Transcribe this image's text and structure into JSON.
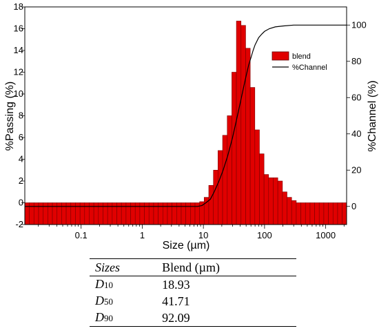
{
  "chart_data": {
    "type": "bar",
    "xlabel": "Size (µm)",
    "ylabel": "%Passing (%)",
    "y2label": "%Channel (%)",
    "x_scale": "log",
    "xlim": [
      0.012,
      2200
    ],
    "ylim": [
      -2,
      18
    ],
    "y2lim": [
      -10,
      110
    ],
    "x_ticks": [
      "0.1",
      "1",
      "10",
      "100",
      "1000"
    ],
    "y_ticks": [
      "-2",
      "0",
      "2",
      "4",
      "6",
      "8",
      "10",
      "12",
      "14",
      "16",
      "18"
    ],
    "y2_ticks": [
      "0",
      "20",
      "40",
      "60",
      "80",
      "100"
    ],
    "legend_position": "top-right",
    "series": [
      {
        "name": "blend",
        "kind": "bar",
        "color": "#e00000",
        "x": [
          0.0131,
          0.0155,
          0.0185,
          0.022,
          0.0262,
          0.0311,
          0.037,
          0.044,
          0.0523,
          0.0622,
          0.074,
          0.088,
          0.105,
          0.124,
          0.148,
          0.176,
          0.209,
          0.249,
          0.296,
          0.352,
          0.418,
          0.498,
          0.592,
          0.704,
          0.837,
          0.995,
          1.18,
          1.41,
          1.67,
          1.99,
          2.37,
          2.81,
          3.35,
          3.98,
          4.73,
          5.63,
          6.69,
          7.96,
          9.46,
          11.2,
          13.4,
          15.9,
          18.9,
          22.5,
          26.8,
          31.8,
          37.8,
          45.0,
          53.5,
          63.6,
          75.7,
          90.0,
          107,
          127,
          151,
          180,
          214,
          254,
          303,
          360,
          428,
          509,
          605,
          719,
          855,
          1017,
          1209,
          1438,
          1710,
          2033
        ],
        "values": [
          0,
          0,
          0,
          0,
          0,
          0,
          0,
          0,
          0,
          0,
          0,
          0,
          0,
          0,
          0,
          0,
          0,
          0,
          0,
          0,
          0,
          0,
          0,
          0,
          0,
          0,
          0,
          0,
          0,
          0,
          0,
          0,
          0,
          0,
          0,
          0,
          0,
          0,
          0.1,
          0.5,
          1.6,
          3.0,
          4.8,
          6.2,
          8.0,
          12.0,
          16.7,
          16.3,
          14.2,
          10.6,
          6.7,
          4.5,
          2.6,
          2.3,
          2.3,
          2.0,
          1.0,
          0.5,
          0.2,
          0,
          0,
          0,
          0,
          0,
          0,
          0,
          0,
          0,
          0,
          0
        ]
      },
      {
        "name": "%Channel",
        "kind": "line",
        "color": "#000000",
        "x": [
          0.012,
          1,
          5,
          8,
          9.5,
          11,
          13,
          15,
          18,
          21,
          25,
          30,
          35,
          40,
          45,
          50,
          55,
          60,
          65,
          70,
          80,
          90,
          100,
          120,
          150,
          200,
          300,
          500,
          1000,
          2200
        ],
        "values": [
          0,
          0,
          0,
          0,
          0.5,
          2,
          4,
          8,
          14,
          20,
          28,
          38,
          48,
          57,
          65,
          72,
          78,
          82,
          86,
          89,
          93,
          95,
          96.5,
          98,
          99,
          99.5,
          100,
          100,
          100,
          100
        ]
      }
    ]
  },
  "table": {
    "header": [
      "Sizes",
      "Blend (µm)"
    ],
    "rows": [
      {
        "label": "D",
        "sub": "10",
        "value": "18.93"
      },
      {
        "label": "D",
        "sub": "50",
        "value": "41.71"
      },
      {
        "label": "D",
        "sub": "90",
        "value": "92.09"
      }
    ]
  }
}
